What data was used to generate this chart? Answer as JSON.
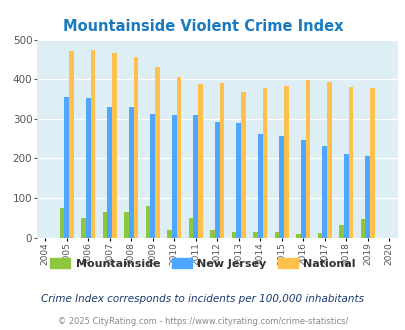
{
  "title": "Mountainside Violent Crime Index",
  "years": [
    2004,
    2005,
    2006,
    2007,
    2008,
    2009,
    2010,
    2011,
    2012,
    2013,
    2014,
    2015,
    2016,
    2017,
    2018,
    2019,
    2020
  ],
  "mountainside": [
    0,
    76,
    50,
    64,
    64,
    80,
    18,
    50,
    18,
    15,
    15,
    15,
    10,
    12,
    32,
    46,
    0
  ],
  "new_jersey": [
    0,
    355,
    352,
    330,
    330,
    312,
    310,
    310,
    293,
    289,
    261,
    256,
    247,
    231,
    211,
    207,
    0
  ],
  "national": [
    0,
    470,
    473,
    467,
    455,
    432,
    405,
    389,
    390,
    368,
    378,
    384,
    399,
    394,
    381,
    379,
    0
  ],
  "color_mountainside": "#8dc63f",
  "color_nj": "#4da6ff",
  "color_national": "#ffc04d",
  "bg_color": "#ddeef5",
  "title_color": "#1a7abf",
  "legend_text_color": "#333333",
  "subtitle_color": "#1a3a6e",
  "footer_color": "#888888",
  "legend_labels": [
    "Mountainside",
    "New Jersey",
    "National"
  ],
  "subtitle": "Crime Index corresponds to incidents per 100,000 inhabitants",
  "footer": "© 2025 CityRating.com - https://www.cityrating.com/crime-statistics/",
  "ylim": [
    0,
    500
  ],
  "yticks": [
    0,
    100,
    200,
    300,
    400,
    500
  ],
  "bar_width": 0.22
}
